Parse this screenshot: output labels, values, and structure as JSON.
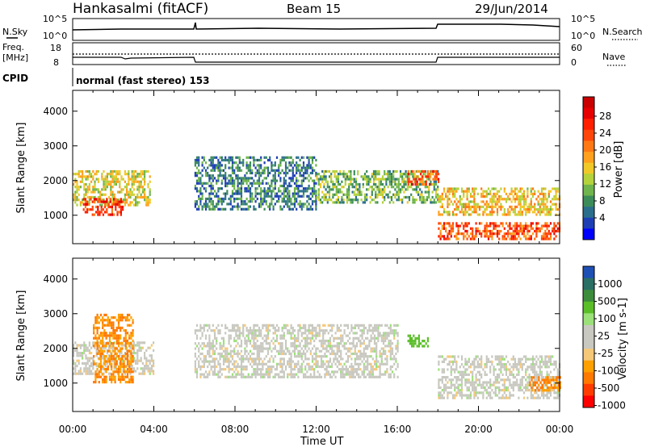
{
  "header": {
    "station": "Hankasalmi (fitACF)",
    "beam": "Beam 15",
    "date": "29/Jun/2014"
  },
  "panels": {
    "noise": {
      "left_label": "N.Sky",
      "left_ticks": [
        "10^5",
        "10^0"
      ],
      "right_label": "N.Search",
      "right_ticks": [
        "10^5",
        "10^0"
      ]
    },
    "freq": {
      "left_label_1": "Freq.",
      "left_label_2": "[MHz]",
      "left_ticks": [
        "18",
        "8"
      ],
      "right_label": "Nave",
      "right_ticks": [
        "60",
        "0"
      ]
    },
    "cpid": {
      "label": "CPID",
      "text": "normal (fast stereo) 153"
    }
  },
  "axes": {
    "ylabel": "Slant Range [km]",
    "yticks": [
      "4000",
      "3000",
      "2000",
      "1000"
    ],
    "xticks": [
      "00:00",
      "04:00",
      "08:00",
      "12:00",
      "16:00",
      "20:00",
      "00:00"
    ],
    "xlabel": "Time UT"
  },
  "colorbars": {
    "power": {
      "label": "Power [dB]",
      "ticks": [
        "28",
        "24",
        "20",
        "16",
        "12",
        "8",
        "4"
      ],
      "colors": [
        "#0000ff",
        "#1e3fb4",
        "#2a6e8c",
        "#3c8c5a",
        "#6fb44c",
        "#b4d23c",
        "#f0c828",
        "#ffa01e",
        "#ff7814",
        "#ff460a",
        "#ff1e00",
        "#e60000",
        "#c80000"
      ]
    },
    "velocity": {
      "label": "Velocity [m s-1]",
      "ticks": [
        "1000",
        "500",
        "100",
        "25",
        "-25",
        "-100",
        "-500",
        "-1000"
      ],
      "colors": [
        "#1e50b4",
        "#2a6e64",
        "#3c8c3c",
        "#5abe28",
        "#9be078",
        "#c8c8c0",
        "#c8c8c0",
        "#f5c878",
        "#ffa000",
        "#ff7800",
        "#ff3c00",
        "#ff0000"
      ]
    }
  },
  "chart_data": [
    {
      "type": "heatmap",
      "title": "Power",
      "xlabel": "Time UT",
      "ylabel": "Slant Range [km]",
      "xlim": [
        0,
        24
      ],
      "ylim": [
        180,
        4600
      ],
      "zlabel": "Power [dB]",
      "zlim": [
        0,
        30
      ],
      "echo_regions": [
        {
          "t": [
            0.0,
            3.8
          ],
          "range": [
            1300,
            2300
          ],
          "power": 14
        },
        {
          "t": [
            0.5,
            2.5
          ],
          "range": [
            1000,
            1500
          ],
          "power": 24
        },
        {
          "t": [
            6.0,
            12.0
          ],
          "range": [
            1200,
            2700
          ],
          "power": 6
        },
        {
          "t": [
            12.0,
            18.0
          ],
          "range": [
            1400,
            2300
          ],
          "power": 10
        },
        {
          "t": [
            16.5,
            18.0
          ],
          "range": [
            1900,
            2300
          ],
          "power": 22
        },
        {
          "t": [
            18.0,
            24.0
          ],
          "range": [
            300,
            800
          ],
          "power": 22
        },
        {
          "t": [
            18.0,
            24.0
          ],
          "range": [
            1000,
            1800
          ],
          "power": 16
        }
      ]
    },
    {
      "type": "heatmap",
      "title": "Velocity",
      "xlabel": "Time UT",
      "ylabel": "Slant Range [km]",
      "xlim": [
        0,
        24
      ],
      "ylim": [
        180,
        4600
      ],
      "zlabel": "Velocity [m s-1]",
      "zlim": [
        -1000,
        1000
      ],
      "echo_regions": [
        {
          "t": [
            0.0,
            4.0
          ],
          "range": [
            1300,
            2200
          ],
          "velocity": 0
        },
        {
          "t": [
            1.0,
            3.0
          ],
          "range": [
            1000,
            3000
          ],
          "velocity": -300
        },
        {
          "t": [
            6.0,
            16.0
          ],
          "range": [
            1200,
            2700
          ],
          "velocity": 0
        },
        {
          "t": [
            16.5,
            17.5
          ],
          "range": [
            2100,
            2400
          ],
          "velocity": 100
        },
        {
          "t": [
            18.0,
            24.0
          ],
          "range": [
            600,
            1800
          ],
          "velocity": 0
        },
        {
          "t": [
            22.5,
            24.0
          ],
          "range": [
            800,
            1200
          ],
          "velocity": -300
        }
      ]
    }
  ]
}
